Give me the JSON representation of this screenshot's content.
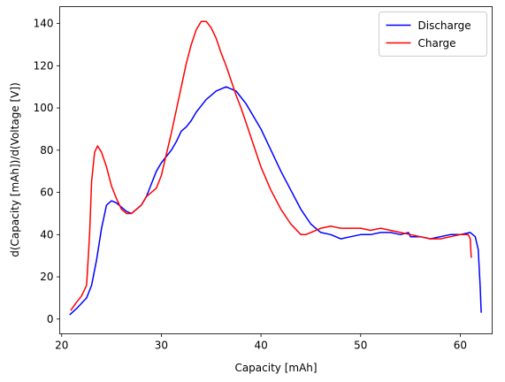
{
  "chart_data": {
    "type": "line",
    "xlabel": "Capacity [mAh]",
    "ylabel": "d(Capacity [mAh])/d(Voltage [V])",
    "xlim": [
      19.8,
      63.2
    ],
    "ylim": [
      -7,
      148
    ],
    "xticks": [
      20,
      30,
      40,
      50,
      60
    ],
    "yticks": [
      0,
      20,
      40,
      60,
      80,
      100,
      120,
      140
    ],
    "grid": false,
    "legend_position": "top-right",
    "series": [
      {
        "name": "Discharge",
        "color": "#0000ff",
        "x": [
          20.8,
          21.5,
          22.5,
          23.0,
          23.5,
          24.0,
          24.5,
          25.0,
          25.5,
          26.0,
          26.5,
          27.0,
          27.5,
          28.0,
          28.5,
          29.0,
          29.5,
          30.0,
          30.5,
          31.0,
          31.5,
          32.0,
          32.5,
          33.0,
          33.5,
          34.0,
          34.5,
          35.0,
          35.5,
          36.0,
          36.5,
          37.0,
          37.5,
          38.0,
          38.5,
          39.0,
          40.0,
          41.0,
          42.0,
          43.0,
          44.0,
          45.0,
          46.0,
          47.0,
          48.0,
          49.0,
          50.0,
          51.0,
          52.0,
          53.0,
          54.0,
          54.8,
          55.0,
          56.0,
          57.0,
          58.0,
          59.0,
          60.0,
          61.0,
          61.5,
          61.8,
          62.0,
          62.1
        ],
        "values": [
          2,
          5,
          10,
          16,
          28,
          43,
          54,
          56,
          55,
          53,
          51,
          50,
          52,
          54,
          58,
          64,
          70,
          74,
          77,
          80,
          84,
          89,
          91,
          94,
          98,
          101,
          104,
          106,
          108,
          109,
          110,
          109,
          108,
          105,
          102,
          98,
          90,
          80,
          70,
          61,
          52,
          45,
          41,
          40,
          38,
          39,
          40,
          40,
          41,
          41,
          40,
          41,
          39,
          39,
          38,
          39,
          40,
          40,
          41,
          39,
          33,
          15,
          3
        ]
      },
      {
        "name": "Charge",
        "color": "#ff0000",
        "x": [
          20.9,
          21.5,
          22.0,
          22.5,
          22.8,
          23.0,
          23.3,
          23.6,
          24.0,
          24.5,
          25.0,
          25.5,
          26.0,
          26.5,
          27.0,
          27.5,
          28.0,
          28.5,
          29.0,
          29.5,
          30.0,
          30.5,
          31.0,
          31.5,
          32.0,
          32.5,
          33.0,
          33.5,
          34.0,
          34.5,
          35.0,
          35.5,
          36.0,
          36.5,
          37.0,
          37.5,
          38.0,
          38.5,
          39.0,
          39.5,
          40.0,
          41.0,
          42.0,
          43.0,
          44.0,
          44.5,
          45.0,
          46.0,
          47.0,
          48.0,
          49.0,
          50.0,
          51.0,
          52.0,
          53.0,
          54.0,
          55.0,
          56.0,
          57.0,
          58.0,
          59.0,
          60.0,
          60.8,
          61.0,
          61.1
        ],
        "values": [
          4,
          8,
          11,
          16,
          40,
          65,
          79,
          82,
          79,
          72,
          63,
          57,
          52,
          50,
          50,
          52,
          54,
          58,
          60,
          62,
          68,
          78,
          88,
          99,
          110,
          121,
          130,
          137,
          141,
          141,
          138,
          133,
          126,
          120,
          113,
          106,
          100,
          93,
          86,
          79,
          72,
          61,
          52,
          45,
          40,
          40,
          41,
          43,
          44,
          43,
          43,
          43,
          42,
          43,
          42,
          41,
          40,
          39,
          38,
          38,
          39,
          40,
          40,
          38,
          29
        ]
      }
    ]
  }
}
